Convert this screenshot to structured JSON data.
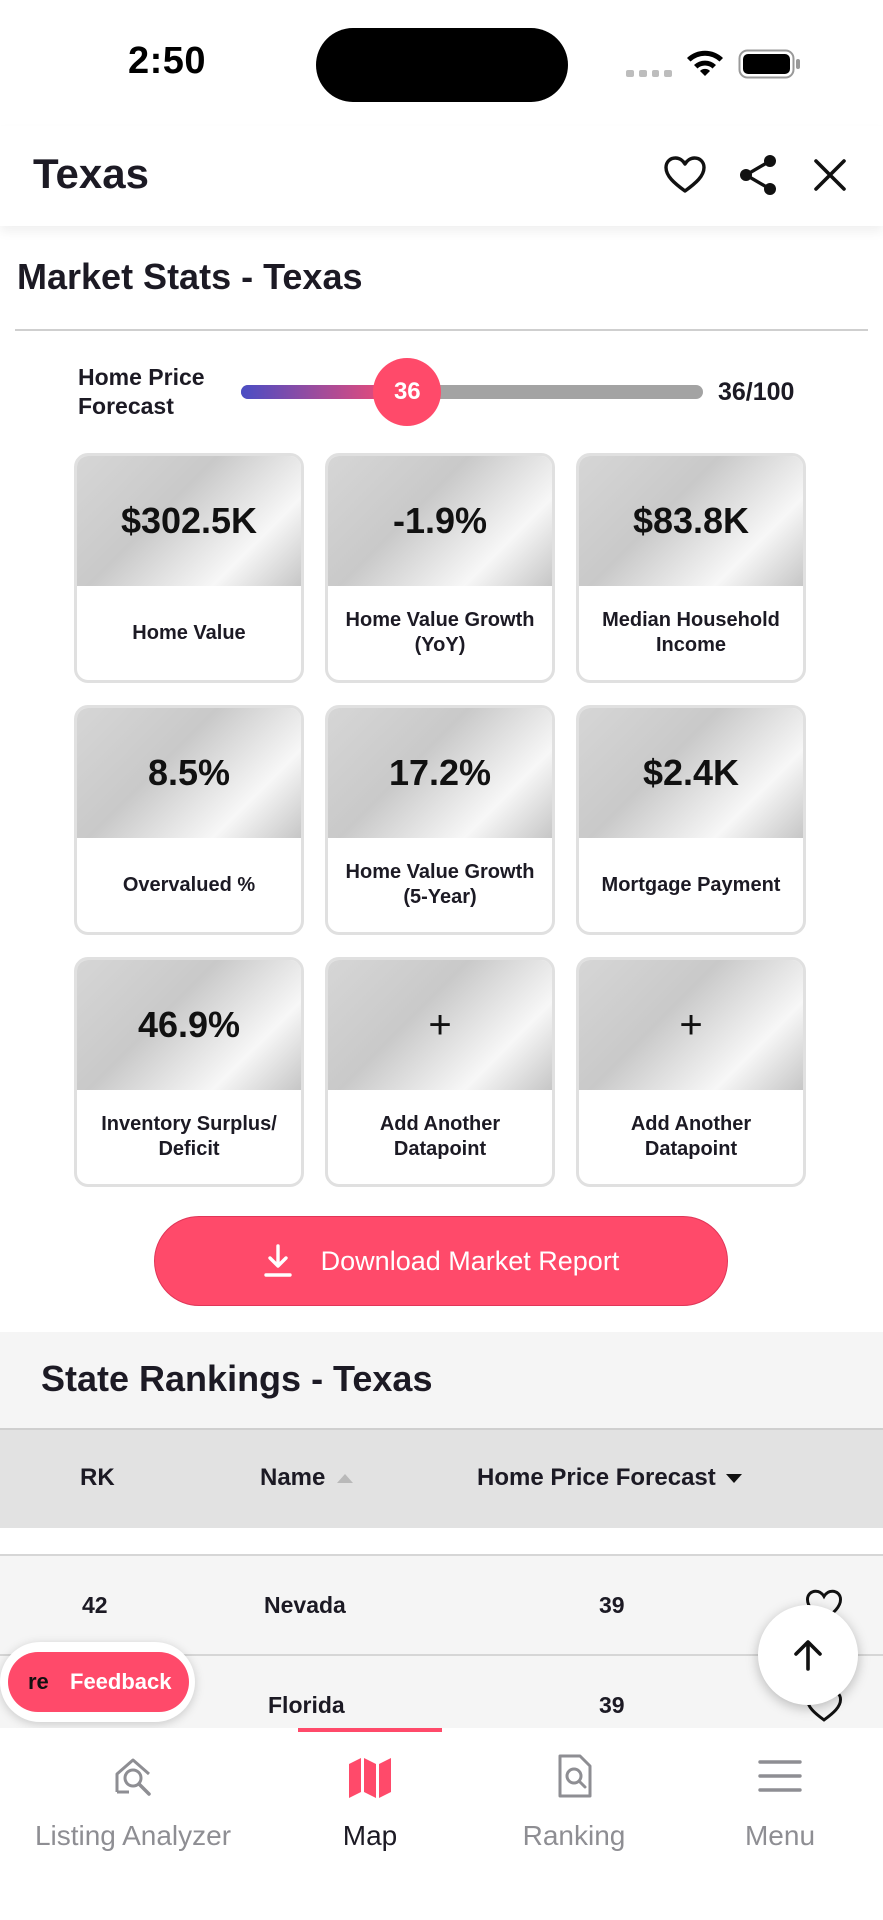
{
  "status_bar": {
    "time": "2:50"
  },
  "header": {
    "title": "Texas"
  },
  "market_stats": {
    "title": "Market Stats - Texas",
    "forecast": {
      "label": "Home Price Forecast",
      "score": 36,
      "score_display": "36/100",
      "max": 100
    },
    "cards": [
      {
        "value": "$302.5K",
        "label": "Home Value"
      },
      {
        "value": "-1.9%",
        "label": "Home Value Growth (YoY)"
      },
      {
        "value": "$83.8K",
        "label": "Median Household Income"
      },
      {
        "value": "8.5%",
        "label": "Overvalued %"
      },
      {
        "value": "17.2%",
        "label": "Home Value Growth (5-Year)"
      },
      {
        "value": "$2.4K",
        "label": "Mortgage Payment"
      },
      {
        "value": "46.9%",
        "label": "Inventory Surplus/ Deficit"
      },
      {
        "value": "+",
        "label": "Add Another Datapoint"
      },
      {
        "value": "+",
        "label": "Add Another Datapoint"
      }
    ],
    "download_label": "Download Market Report"
  },
  "rankings": {
    "title": "State Rankings - Texas",
    "columns": {
      "rank": "RK",
      "name": "Name",
      "forecast": "Home Price Forecast"
    },
    "rows": [
      {
        "rank": "42",
        "name": "Nevada",
        "forecast": "39"
      },
      {
        "rank": "",
        "name": "Florida",
        "forecast": "39"
      }
    ]
  },
  "feedback": {
    "logo": "re",
    "label": "Feedback"
  },
  "bottom_nav": {
    "active": "Map",
    "items": [
      {
        "label": "Listing Analyzer",
        "icon": "listing-analyzer-icon"
      },
      {
        "label": "Map",
        "icon": "map-icon"
      },
      {
        "label": "Ranking",
        "icon": "ranking-icon"
      },
      {
        "label": "Menu",
        "icon": "menu-icon"
      }
    ]
  },
  "colors": {
    "accent": "#ff4a6a",
    "gradient_start": "#4a4dc4",
    "text": "#1c1a24",
    "inactive": "#8e8e93"
  }
}
